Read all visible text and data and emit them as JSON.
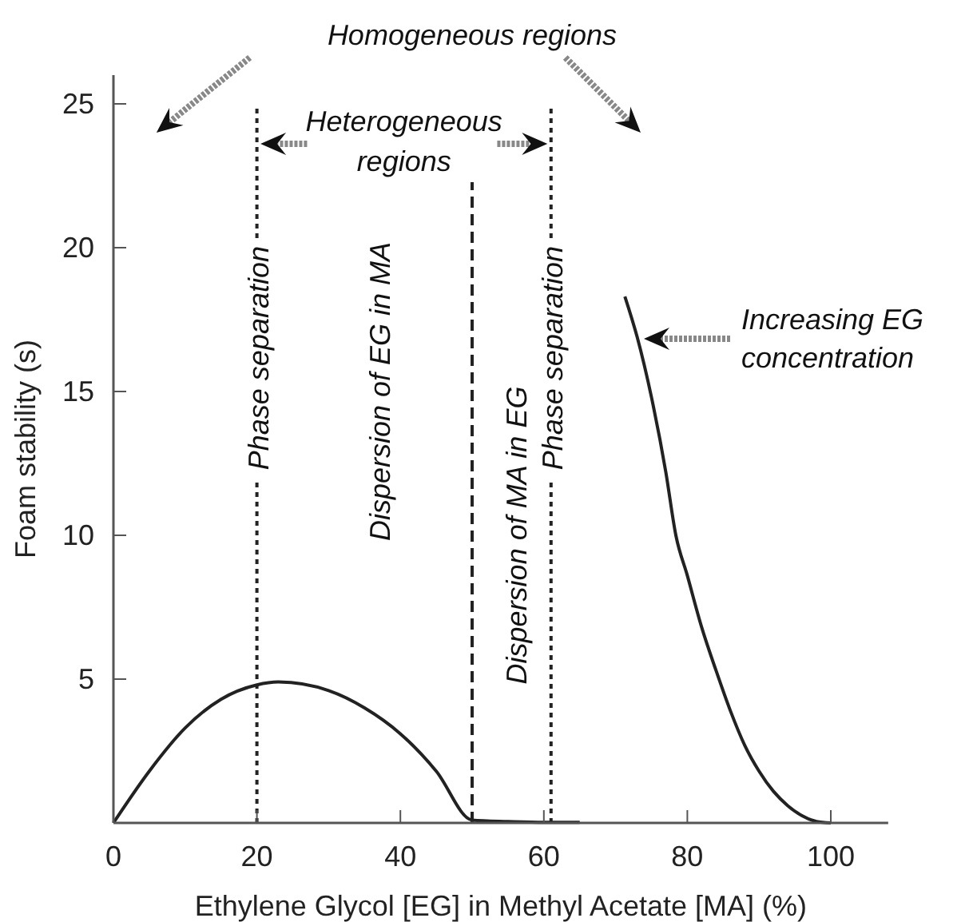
{
  "chart_data": {
    "type": "line",
    "xlabel": "Ethylene Glycol [EG] in Methyl Acetate [MA] (%)",
    "ylabel": "Foam stability (s)",
    "xlim": [
      0,
      108
    ],
    "xticks": [
      0,
      20,
      40,
      60,
      80,
      100
    ],
    "ylim": [
      0,
      26
    ],
    "yticks": [
      {
        "value": 0,
        "label": null
      },
      5,
      10,
      15,
      20,
      25
    ],
    "series": [
      {
        "color": "#222222",
        "x": [
          0,
          5,
          10,
          15,
          20,
          23,
          30,
          35,
          40,
          45,
          50,
          55,
          60,
          65
        ],
        "values": [
          0,
          1.8,
          3.3,
          4.3,
          4.8,
          4.9,
          4.6,
          4.0,
          3.1,
          1.8,
          0.1,
          0.05,
          0.02,
          0.02
        ]
      },
      {
        "color": "#222222",
        "x": [
          71.3,
          73,
          75,
          77,
          78.4,
          80,
          82,
          84,
          86,
          88,
          90,
          92,
          94,
          96,
          98,
          100
        ],
        "values": [
          18.3,
          16.9,
          14.8,
          12.2,
          10,
          8.6,
          6.8,
          5.3,
          3.9,
          2.7,
          1.8,
          1.1,
          0.6,
          0.25,
          0.05,
          0
        ]
      }
    ],
    "ref_lines": [
      {
        "axis": "x",
        "value": 20,
        "label": "Phase separation",
        "line_style": "dotted"
      },
      {
        "axis": "x",
        "value": 50,
        "line_style": "dashed"
      },
      {
        "axis": "x",
        "value": 61,
        "label": "Phase separation",
        "line_style": "dotted"
      }
    ],
    "annotations": [
      "Homogeneous regions",
      "Heterogeneous regions",
      "Increasing EG concentration",
      "Dispersion of EG in MA",
      "Dispersion of MA in EG"
    ],
    "marker": "none",
    "line_style": "solid",
    "grid": false
  }
}
